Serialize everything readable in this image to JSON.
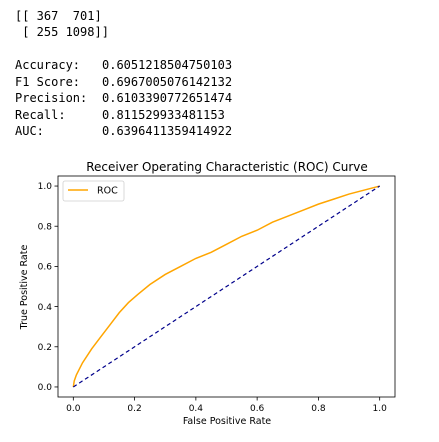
{
  "confusion_matrix": {
    "rows": [
      "[[ 367  701]",
      " [ 255 1098]]"
    ]
  },
  "metrics": [
    {
      "label": "Accuracy:",
      "value": "0.6051218504750103"
    },
    {
      "label": "F1 Score:",
      "value": "0.6967005076142132"
    },
    {
      "label": "Precision:",
      "value": "0.6103390772651474"
    },
    {
      "label": "Recall:",
      "value": "0.811529933481153"
    },
    {
      "label": "AUC:",
      "value": "0.6396411359414922"
    }
  ],
  "colors": {
    "roc_line": "#ffa500",
    "diagonal": "#00008b",
    "axes": "#000000"
  },
  "chart_data": {
    "type": "line",
    "title": "Receiver Operating Characteristic (ROC) Curve",
    "xlabel": "False Positive Rate",
    "ylabel": "True Positive Rate",
    "xlim": [
      -0.05,
      1.05
    ],
    "ylim": [
      -0.05,
      1.05
    ],
    "xticks": [
      "0.0",
      "0.2",
      "0.4",
      "0.6",
      "0.8",
      "1.0"
    ],
    "yticks": [
      "0.0",
      "0.2",
      "0.4",
      "0.6",
      "0.8",
      "1.0"
    ],
    "legend_position": "top-left",
    "grid": false,
    "series": [
      {
        "name": "ROC",
        "x": [
          0,
          0.003,
          0.01,
          0.03,
          0.06,
          0.09,
          0.12,
          0.15,
          0.18,
          0.21,
          0.25,
          0.3,
          0.35,
          0.4,
          0.45,
          0.5,
          0.55,
          0.6,
          0.65,
          0.7,
          0.75,
          0.8,
          0.85,
          0.9,
          0.95,
          1.0
        ],
        "y": [
          0,
          0.03,
          0.06,
          0.12,
          0.19,
          0.25,
          0.31,
          0.37,
          0.42,
          0.46,
          0.51,
          0.56,
          0.6,
          0.64,
          0.67,
          0.71,
          0.75,
          0.78,
          0.82,
          0.85,
          0.88,
          0.91,
          0.935,
          0.96,
          0.98,
          1.0
        ]
      },
      {
        "name": "",
        "style": "dashed",
        "x": [
          0,
          1
        ],
        "y": [
          0,
          1
        ]
      }
    ]
  }
}
